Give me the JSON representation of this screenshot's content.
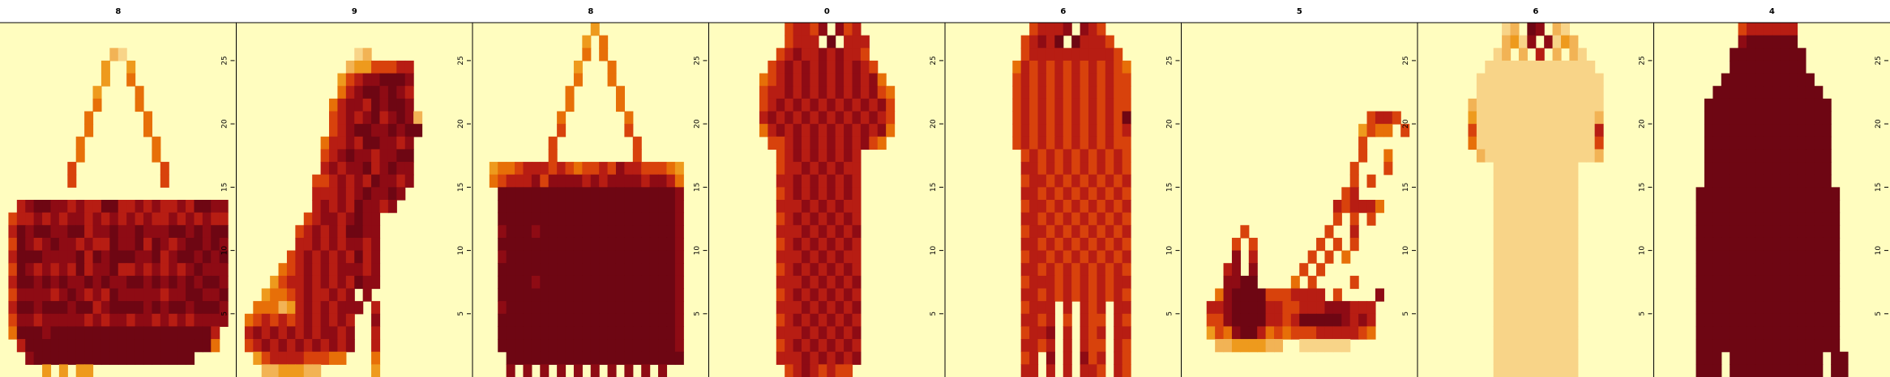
{
  "chart_data": {
    "type": "heatmap",
    "description_colormap": "heat",
    "colors": {
      "background": "#FFFDBF",
      "ramp": [
        "#FFFFBF",
        "#FCEFA6",
        "#F8D488",
        "#F2B355",
        "#EE9A1D",
        "#E76F08",
        "#D8420C",
        "#B71D13",
        "#8E0B14",
        "#6E0613"
      ]
    },
    "y_ticks": [
      5,
      10,
      15,
      20,
      25
    ],
    "ylim": [
      0,
      28
    ],
    "panels": [
      {
        "title": "8",
        "shape": "bag",
        "grid": [
          "............................",
          "............................",
          ".............32.............",
          "............4..4............",
          "............4..5............",
          "...........4....5...........",
          "...........5....5...........",
          "..........5......5..........",
          "..........5......5..........",
          ".........5........5.........",
          ".........5........5.........",
          "........6..........6........",
          "........6..........6........",
          "..........................",
          "..7899887877997787877879988.",
          ".67787878878787878778787877.",
          ".79899889978898898889989899.",
          ".69878988787798897987899898.",
          ".79998888979899988978998989.",
          ".69878787978897787878789888.",
          ".79989898898988998989898998.",
          ".68888789878798888878899889.",
          ".79989998997899998989989998.",
          ".68878888878788788787878888.",
          ".5999899999999999999999997..",
          "..799999999999999999999995..",
          "...89999999999999999999.....",
          ".....4 4 44  ..............."
        ]
      },
      {
        "title": "9",
        "shape": "boot",
        "grid": [
          "............................",
          "............................",
          "..............23............",
          ".............34466677.......",
          "............467889998.......",
          "............578998987.......",
          "...........5788798998.......",
          "...........67878978983......",
          "...........67899889899......",
          "..........57787998878.......",
          "..........67898878899.......",
          "..........78788978988.......",
          ".........667878798878.......",
          ".........77787898898........",
          ".........7878798878.........",
          "........678878988...........",
          ".......6787879988...........",
          ".......7787878878...........",
          "......67878787978...........",
          ".....567878788878...........",
          "....4677878787988...........",
          "...45567877878.8............",
          "..5553478787888.7...........",
          ".5676767878787..8...........",
          ".7878787878878..7...........",
          ".6787878787878..7...........",
          "..46777766655...5...........",
          "...3344433......4..........."
        ]
      },
      {
        "title": "8",
        "shape": "bag2",
        "grid": [
          "..............4.............",
          ".............4.5............",
          ".............5.5............",
          "............4...5...........",
          "............5...5...........",
          "...........5.....5..........",
          "...........5.....5..........",
          "..........5.......5.........",
          "..........6.......6.........",
          ".........6.........6........",
          ".........6.........6........",
          "..45567776765667687766654...",
          "..56777868888787888878875...",
          "...9999999999999999999998...",
          "...9999999999999999999998...",
          "...9999999999999999999998...",
          "...8999899999999999999998...",
          "...9999999999999999999998...",
          "...8999999999999999999998...",
          "...9999999999999999999998...",
          "...9999899999999999999998...",
          "...9999999999999999999998...",
          "...8999999999999999999998...",
          "...9999999999999999999998...",
          "...9999999999999999999998...",
          "...9999999999999999999998...",
          "....999999999999999999999...",
          "....8 8 8 8 8 8 8 8 8 8....."
        ]
      },
      {
        "title": "0",
        "shape": "dress",
        "grid": [
          ".........67768.867.........",
          ".........6777.9.777........",
          "........67877878776........",
          ".......6787878787876.......",
          "......567878787878785......",
          "......6778787878787865.....",
          "......6787878787878786.....",
          "......7878787878787876.....",
          "......5787878787878785.....",
          ".......66787878787865......",
          "........6787878787.........",
          "........6778787877.........",
          "........7787878787.........",
          "........6787878787.........",
          "........7778787877.........",
          "........6787878787.........",
          "........7778787878.........",
          "........6787878787.........",
          "........7778787877.........",
          "........6787878787.........",
          "........7778787878.........",
          "........6787878787.........",
          "........7778787878.........",
          "........6787878787.........",
          "........7778787878.........",
          "........6787878787.........",
          "........7778787878.........",
          ".........67876766..........."
        ]
      },
      {
        "title": "6",
        "shape": "dress2",
        "grid": [
          "..........67778.876.........",
          ".........67879.97776........",
          ".........677777777776.......",
          "........57676767676765......",
          "........67676767676766......",
          "........67676767676766......",
          "........67676767676766......",
          "........67676767676769......",
          "........67676767676767......",
          "........67676767676766......",
          ".........6767676767676......",
          ".........7767676767676......",
          ".........6776767676767......",
          ".........7767676767676......",
          ".........6776767676767......",
          ".........7767676767676......",
          ".........6776767676767......",
          ".........7767676767676......",
          ".........6776767676767......",
          ".........7767676767676......",
          ".........6777676767677......",
          ".........7767676767676......",
          ".........6777.7.767.77......",
          ".........7767.6.766.76......",
          ".........6778.7.767.77......",
          ".........7767.7.766.76......",
          ".........67.8.7.867.76......",
          ".........77.7.7.776.76......"
        ]
      },
      {
        "title": "5",
        "shape": "sandal",
        "grid": [
          "............................",
          "............................",
          "............................",
          "............................",
          "............................",
          "............................",
          "............................",
          "......................6776..",
          ".....................4655.6.",
          ".....................6......",
          ".....................6..5...",
          "....................6...6...",
          "....................6.6.....",
          "...................67.......",
          "..................767775....",
          "..................6.6.6.....",
          ".......6.........6..7.......",
          "......6.6.......6.6.6.......",
          "......8.7......6.6.5........",
          ".....78.8.....6.6...........",
          ".....8899....5.6....6.......",
          "....5899996667777.6....8....",
          "...77899997766777888777.....",
          "...66899997767999998787.....",
          "...46589975656667777765.....",
          "....33444433..222222........",
          "............................",
          "............................"
        ]
      },
      {
        "title": "6",
        "shape": "shirt",
        "grid": [
          "..........23.98.32..........",
          "..........3428.8243.........",
          ".........23.3.7.3.32........",
          "........2222222222222.......",
          ".......222222222222222......",
          ".......222222222222222......",
          "......3222222222222222......",
          "......4222222222222223......",
          "......6222222222222227......",
          "......5222222222222226......",
          ".......322222222222223......",
          ".........2222222222.........",
          ".........2222222222.........",
          ".........2222222222.........",
          ".........2222222222.........",
          ".........2222222222.........",
          ".........2222222222.........",
          ".........2222222222.........",
          ".........2222222222.........",
          ".........2222222222.........",
          ".........2222222222.........",
          ".........2222222222.........",
          ".........2222222222.........",
          ".........2222222222.........",
          ".........2222222222.........",
          ".........2222222222.........",
          ".........2222222222.........",
          ".........2222222222........."
        ]
      },
      {
        "title": "4",
        "shape": "coat",
        "grid": [
          "..........6777777...........",
          "..........8999999...........",
          ".........999999999..........",
          ".........999999999..........",
          "........99999999999.........",
          ".......9999999999999........",
          "......999999999999999.......",
          "......999999999999999.......",
          "......999999999999999.......",
          "......999999999999999.......",
          "......999999999999999.......",
          "......999999999999999.......",
          "......999999999999999.......",
          ".....99999999999999999......",
          ".....99999999999999999......",
          ".....99999999999999999......",
          ".....99999999999999999......",
          ".....99999999999999999......",
          ".....99999999999999999......",
          ".....99999999999999999......",
          ".....99999999999999999......",
          ".....99999999999999999......",
          ".....99999999999999999......",
          ".....99999999999999999......",
          ".....99999999999999999......",
          ".....99999999999999999......",
          ".....999.99999999999.99.....",
          ".....999.99999999999.99....."
        ]
      }
    ]
  }
}
